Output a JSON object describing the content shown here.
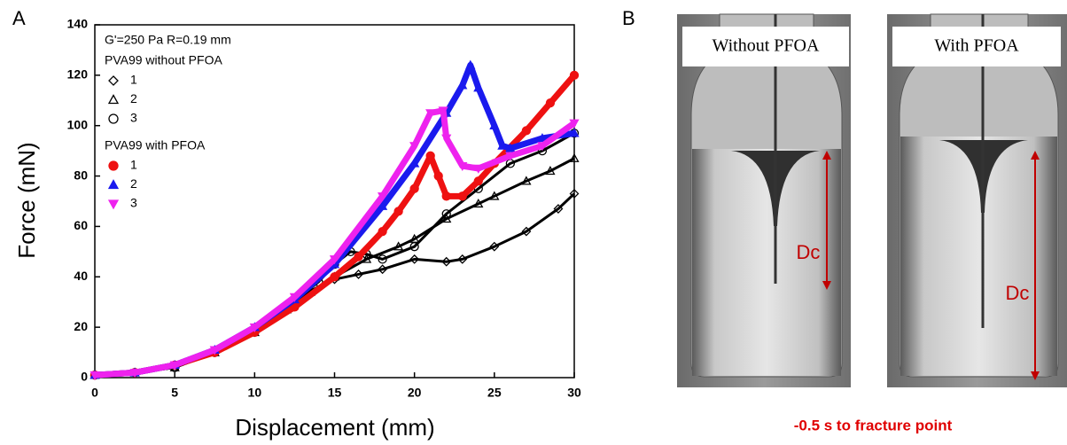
{
  "panel_labels": [
    "A",
    "B"
  ],
  "chart_data": {
    "type": "line",
    "annotation": "G'=250 Pa R=0.19 mm",
    "x_label": "Displacement (mm)",
    "y_label": "Force (mN)",
    "xlim": [
      0,
      30
    ],
    "ylim": [
      0,
      140
    ],
    "xticks": [
      0,
      5,
      10,
      15,
      20,
      25,
      30
    ],
    "yticks": [
      0,
      20,
      40,
      60,
      80,
      100,
      120,
      140
    ],
    "series_groups": [
      {
        "name": "PVA99 without PFOA",
        "series": [
          {
            "name": "1",
            "color": "#000000",
            "marker": "diamond",
            "filled": false,
            "x": [
              0,
              2.5,
              5,
              7.5,
              10,
              12,
              13,
              15,
              16.5,
              18,
              20,
              22,
              23,
              25,
              27,
              29,
              30
            ],
            "y": [
              1,
              2,
              4,
              10,
              18,
              27,
              33,
              39,
              41,
              43,
              47,
              46,
              47,
              52,
              58,
              67,
              73
            ]
          },
          {
            "name": "2",
            "color": "#000000",
            "marker": "triangle",
            "filled": false,
            "x": [
              0,
              2.5,
              5,
              7.5,
              10,
              12,
              13.5,
              15,
              17,
              19,
              20,
              22,
              24,
              25,
              27,
              28.5,
              30
            ],
            "y": [
              1,
              2,
              4,
              10,
              18,
              27,
              34,
              40,
              47,
              52,
              55,
              63,
              69,
              72,
              78,
              82,
              87
            ]
          },
          {
            "name": "3",
            "color": "#000000",
            "marker": "circle",
            "filled": false,
            "x": [
              0,
              2.5,
              5,
              7.5,
              10,
              12,
              14,
              15,
              16,
              17,
              18,
              20,
              22,
              24,
              26,
              28,
              30
            ],
            "y": [
              1,
              2,
              4,
              10,
              18,
              28,
              38,
              45,
              50,
              49,
              47,
              52,
              65,
              75,
              85,
              90,
              97
            ]
          }
        ]
      },
      {
        "name": "PVA99 with PFOA",
        "series": [
          {
            "name": "1",
            "color": "#ee1111",
            "marker": "circle",
            "filled": true,
            "x": [
              0,
              2.5,
              5,
              7.5,
              10,
              12.5,
              15,
              16.5,
              18,
              19,
              20,
              21,
              21.5,
              22,
              23,
              24,
              25,
              27,
              28.5,
              30
            ],
            "y": [
              1,
              2,
              5,
              10,
              18,
              28,
              40,
              48,
              58,
              66,
              75,
              88,
              80,
              72,
              72,
              78,
              85,
              98,
              109,
              120
            ]
          },
          {
            "name": "2",
            "color": "#1a1aee",
            "marker": "triangle",
            "filled": true,
            "x": [
              0,
              2.5,
              5,
              7.5,
              10,
              12.5,
              15,
              18,
              20,
              22,
              23,
              23.5,
              24,
              25,
              25.5,
              26,
              28,
              30
            ],
            "y": [
              1,
              2,
              5,
              11,
              20,
              31,
              45,
              68,
              85,
              105,
              116,
              124,
              115,
              100,
              92,
              91,
              95,
              97
            ]
          },
          {
            "name": "3",
            "color": "#ee22ee",
            "marker": "triangle-down",
            "filled": true,
            "x": [
              0,
              2.5,
              5,
              7.5,
              10,
              12.5,
              15,
              18,
              20,
              21,
              21.8,
              22,
              23,
              24,
              26,
              28,
              30
            ],
            "y": [
              1,
              2,
              5,
              11,
              20,
              32,
              47,
              72,
              92,
              105,
              106,
              95,
              84,
              83,
              88,
              92,
              101
            ]
          }
        ]
      }
    ]
  },
  "panel_b": {
    "photos": [
      {
        "label": "Without PFOA",
        "dc": "Dc"
      },
      {
        "label": "With PFOA",
        "dc": "Dc"
      }
    ],
    "caption": "-0.5 s to fracture point"
  }
}
